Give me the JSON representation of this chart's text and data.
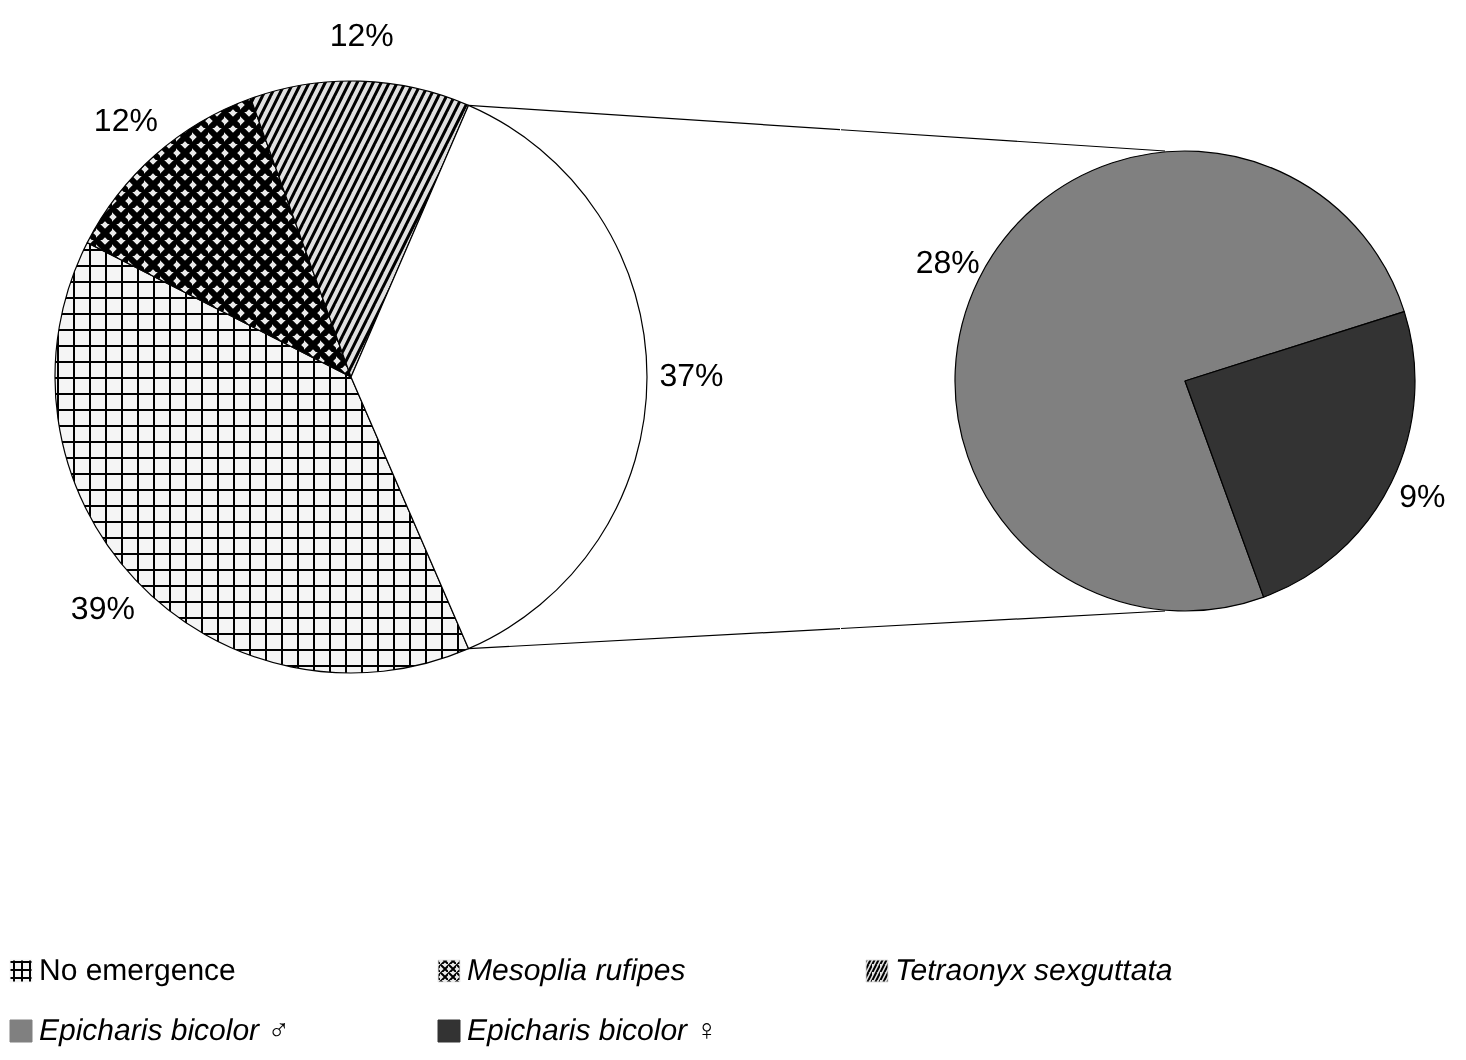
{
  "chart_data": [
    {
      "type": "pie",
      "categories": [
        "No emergence",
        "Mesoplia rufipes",
        "Tetraonyx sexguttata",
        null
      ],
      "values": [
        39,
        12,
        12,
        37
      ],
      "colors": [
        "#f5f5f5",
        "#ebebeb",
        "#e0e0e0",
        "#ffffff"
      ],
      "value_labels": [
        "39%",
        "12%",
        "12%",
        "37%"
      ],
      "legend": "bottom"
    },
    {
      "type": "pie",
      "categories": [
        "Epicharis bicolor ♂",
        "Epicharis bicolor ♀"
      ],
      "values": [
        28,
        9
      ],
      "colors": [
        "#808080",
        "#333333"
      ],
      "value_labels": [
        "28%",
        "9%"
      ],
      "legend": "bottom"
    }
  ]
}
